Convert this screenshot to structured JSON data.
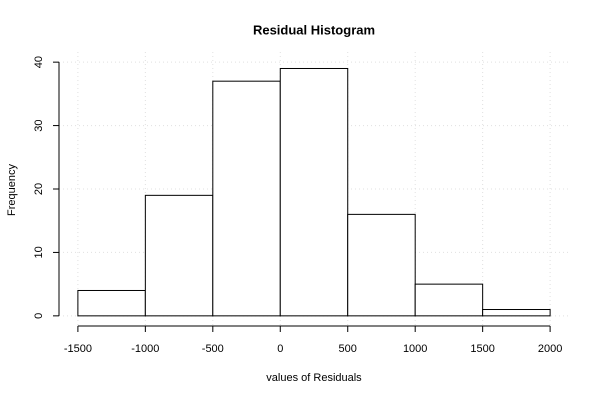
{
  "chart_data": {
    "type": "histogram",
    "title": "Residual Histogram",
    "x_label": "values of Residuals",
    "y_label": "Frequency",
    "bins": [
      -1500,
      -1000,
      -500,
      0,
      500,
      1000,
      1500,
      2000
    ],
    "values": [
      4,
      19,
      37,
      39,
      16,
      5,
      1
    ],
    "color": "#ffffff",
    "xlim": [
      -1640,
      2140
    ],
    "xticks": [
      -1500,
      -1000,
      -500,
      0,
      500,
      1000,
      1500,
      2000
    ],
    "ylim": [
      -1.6,
      41.6
    ],
    "yticks": [
      0,
      10,
      20,
      30,
      40
    ],
    "grid": true
  }
}
